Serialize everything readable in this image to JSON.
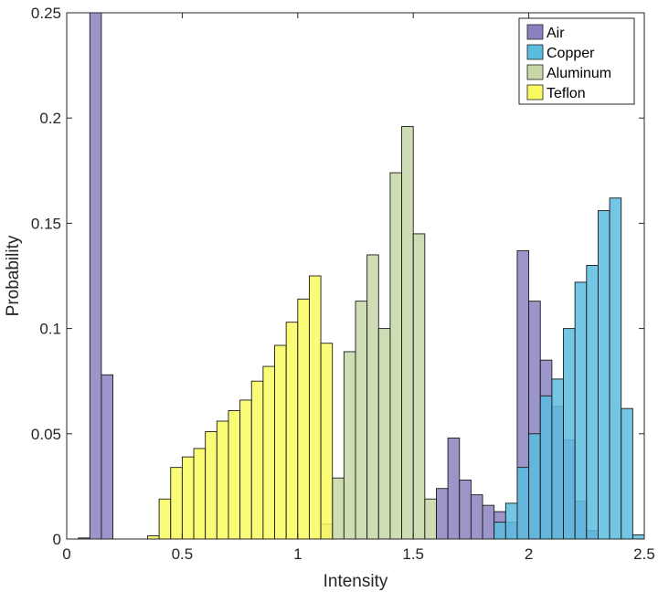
{
  "chart_data": {
    "type": "bar",
    "title": "",
    "xlabel": "Intensity",
    "ylabel": "Probability",
    "xlim": [
      0,
      2.5
    ],
    "ylim": [
      0,
      0.25
    ],
    "xticks": [
      0,
      0.5,
      1,
      1.5,
      2,
      2.5
    ],
    "xtick_labels": [
      "0",
      "0.5",
      "1",
      "1.5",
      "2",
      "2.5"
    ],
    "yticks": [
      0,
      0.05,
      0.1,
      0.15,
      0.2,
      0.25
    ],
    "ytick_labels": [
      "0",
      "0.05",
      "0.1",
      "0.15",
      "0.2",
      "0.25"
    ],
    "legend_position": "top-right",
    "bin_width": 0.05,
    "series": [
      {
        "name": "Air",
        "color": "#8a82c0",
        "bins": [
          {
            "x": 0.075,
            "y": 0.0005
          },
          {
            "x": 0.125,
            "y": 0.25
          },
          {
            "x": 0.175,
            "y": 0.078
          },
          {
            "x": 1.625,
            "y": 0.024
          },
          {
            "x": 1.675,
            "y": 0.048
          },
          {
            "x": 1.725,
            "y": 0.028
          },
          {
            "x": 1.775,
            "y": 0.021
          },
          {
            "x": 1.825,
            "y": 0.016
          },
          {
            "x": 1.875,
            "y": 0.013
          },
          {
            "x": 1.925,
            "y": 0.008
          },
          {
            "x": 1.975,
            "y": 0.137
          },
          {
            "x": 2.025,
            "y": 0.113
          },
          {
            "x": 2.075,
            "y": 0.085
          },
          {
            "x": 2.125,
            "y": 0.063
          },
          {
            "x": 2.175,
            "y": 0.047
          },
          {
            "x": 2.225,
            "y": 0.018
          },
          {
            "x": 2.275,
            "y": 0.004
          }
        ]
      },
      {
        "name": "Copper",
        "color": "#5bbcdf",
        "bins": [
          {
            "x": 1.875,
            "y": 0.008
          },
          {
            "x": 1.925,
            "y": 0.017
          },
          {
            "x": 1.975,
            "y": 0.034
          },
          {
            "x": 2.025,
            "y": 0.05
          },
          {
            "x": 2.075,
            "y": 0.068
          },
          {
            "x": 2.125,
            "y": 0.076
          },
          {
            "x": 2.175,
            "y": 0.1
          },
          {
            "x": 2.225,
            "y": 0.122
          },
          {
            "x": 2.275,
            "y": 0.13
          },
          {
            "x": 2.325,
            "y": 0.156
          },
          {
            "x": 2.375,
            "y": 0.162
          },
          {
            "x": 2.425,
            "y": 0.062
          },
          {
            "x": 2.475,
            "y": 0.002
          }
        ]
      },
      {
        "name": "Aluminum",
        "color": "#c7d7a7",
        "bins": [
          {
            "x": 1.125,
            "y": 0.007
          },
          {
            "x": 1.175,
            "y": 0.029
          },
          {
            "x": 1.225,
            "y": 0.089
          },
          {
            "x": 1.275,
            "y": 0.113
          },
          {
            "x": 1.325,
            "y": 0.135
          },
          {
            "x": 1.375,
            "y": 0.1
          },
          {
            "x": 1.425,
            "y": 0.174
          },
          {
            "x": 1.475,
            "y": 0.196
          },
          {
            "x": 1.525,
            "y": 0.145
          },
          {
            "x": 1.575,
            "y": 0.019
          }
        ]
      },
      {
        "name": "Teflon",
        "color": "#f9fa5f",
        "bins": [
          {
            "x": 0.375,
            "y": 0.0015
          },
          {
            "x": 0.425,
            "y": 0.019
          },
          {
            "x": 0.475,
            "y": 0.034
          },
          {
            "x": 0.525,
            "y": 0.039
          },
          {
            "x": 0.575,
            "y": 0.043
          },
          {
            "x": 0.625,
            "y": 0.051
          },
          {
            "x": 0.675,
            "y": 0.056
          },
          {
            "x": 0.725,
            "y": 0.061
          },
          {
            "x": 0.775,
            "y": 0.066
          },
          {
            "x": 0.825,
            "y": 0.075
          },
          {
            "x": 0.875,
            "y": 0.082
          },
          {
            "x": 0.925,
            "y": 0.092
          },
          {
            "x": 0.975,
            "y": 0.103
          },
          {
            "x": 1.025,
            "y": 0.114
          },
          {
            "x": 1.075,
            "y": 0.125
          },
          {
            "x": 1.125,
            "y": 0.093
          }
        ]
      }
    ]
  }
}
